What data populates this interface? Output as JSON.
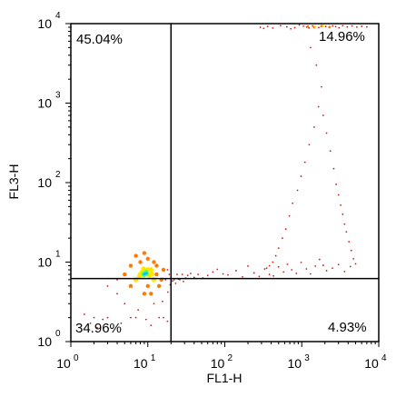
{
  "chart_data": {
    "type": "scatter",
    "x_axis": {
      "label": "FL1-H",
      "scale": "log",
      "range": [
        1,
        10000
      ],
      "ticks": [
        {
          "value": 1,
          "base": "10",
          "exponent": "0"
        },
        {
          "value": 10,
          "base": "10",
          "exponent": "1"
        },
        {
          "value": 100,
          "base": "10",
          "exponent": "2"
        },
        {
          "value": 1000,
          "base": "10",
          "exponent": "3"
        },
        {
          "value": 10000,
          "base": "10",
          "exponent": "4"
        }
      ]
    },
    "y_axis": {
      "label": "FL3-H",
      "scale": "log",
      "range": [
        1,
        10000
      ],
      "ticks": [
        {
          "value": 1,
          "base": "10",
          "exponent": "0"
        },
        {
          "value": 10,
          "base": "10",
          "exponent": "1"
        },
        {
          "value": 100,
          "base": "10",
          "exponent": "2"
        },
        {
          "value": 1000,
          "base": "10",
          "exponent": "3"
        },
        {
          "value": 10000,
          "base": "10",
          "exponent": "4"
        }
      ]
    },
    "quadrant_gates": {
      "x": 20,
      "y": 6.2
    },
    "quadrant_labels": {
      "upper_left": "45.04%",
      "upper_right": "14.96%",
      "lower_left": "34.96%",
      "lower_right": "4.93%"
    },
    "grid": false,
    "legend": "none",
    "density_colors": {
      "sparse": "#d11b1b",
      "medium": "#ff7a00",
      "dense": "#ffe600",
      "peak": "#5aff5a",
      "core": "#00c6ff"
    },
    "series": [
      {
        "role": "main-population",
        "color": "#d11b1b",
        "points": [
          [
            8,
            7
          ],
          [
            9,
            7
          ],
          [
            10,
            8
          ],
          [
            7,
            6
          ],
          [
            11,
            8
          ],
          [
            12,
            6
          ],
          [
            6,
            5
          ],
          [
            13,
            7
          ],
          [
            9,
            4
          ],
          [
            8,
            10
          ],
          [
            14,
            5
          ],
          [
            5,
            7
          ],
          [
            10,
            11
          ],
          [
            11,
            4
          ],
          [
            7,
            12
          ],
          [
            16,
            8
          ],
          [
            15,
            6
          ],
          [
            6,
            9
          ],
          [
            12,
            10
          ],
          [
            13,
            9
          ],
          [
            9,
            13
          ],
          [
            10,
            5
          ],
          [
            4,
            6
          ],
          [
            17,
            6
          ],
          [
            18,
            8
          ],
          [
            3,
            5
          ],
          [
            19,
            7
          ],
          [
            20,
            6
          ],
          [
            22,
            6
          ],
          [
            24,
            7
          ],
          [
            26,
            6
          ],
          [
            28,
            7
          ],
          [
            4,
            4
          ],
          [
            5,
            3
          ],
          [
            6,
            2
          ],
          [
            7,
            2
          ],
          [
            12,
            3
          ],
          [
            14,
            2
          ],
          [
            16,
            2
          ],
          [
            2,
            2
          ],
          [
            3,
            2
          ],
          [
            1.5,
            2.2
          ],
          [
            1.8,
            1.7
          ],
          [
            2.2,
            1.5
          ],
          [
            2.6,
            1.9
          ],
          [
            4.5,
            1.7
          ],
          [
            18,
            1.8
          ],
          [
            11,
            1.6
          ],
          [
            9.5,
            1.9
          ],
          [
            7.5,
            2.5
          ],
          [
            15.5,
            3.2
          ],
          [
            18.2,
            4.2
          ],
          [
            19.5,
            5.2
          ],
          [
            21,
            5.8
          ],
          [
            23,
            5.4
          ],
          [
            25,
            6.1
          ],
          [
            29,
            5.7
          ],
          [
            31,
            6.3
          ],
          [
            33,
            6.8
          ],
          [
            36,
            7.2
          ],
          [
            40,
            6.4
          ],
          [
            45,
            7.0
          ],
          [
            52,
            6.3
          ],
          [
            60,
            6.8
          ],
          [
            70,
            7.5
          ],
          [
            80,
            8.1
          ],
          [
            95,
            7.1
          ],
          [
            110,
            6.9
          ],
          [
            140,
            7.8
          ],
          [
            170,
            6.5
          ],
          [
            200,
            8.9
          ],
          [
            240,
            7.3
          ],
          [
            280,
            6.6
          ],
          [
            330,
            8.2
          ],
          [
            380,
            7.0
          ],
          [
            430,
            6.7
          ],
          [
            500,
            8.7
          ],
          [
            580,
            7.5
          ],
          [
            650,
            9.4
          ],
          [
            740,
            8.0
          ],
          [
            850,
            7.2
          ],
          [
            980,
            9.9
          ],
          [
            1150,
            8.2
          ],
          [
            1300,
            7.1
          ],
          [
            1500,
            8.9
          ],
          [
            1700,
            10.8
          ],
          [
            1900,
            9.1
          ],
          [
            2100,
            7.8
          ],
          [
            2500,
            8.4
          ],
          [
            3000,
            9.3
          ],
          [
            3600,
            7.6
          ],
          [
            4300,
            8.8
          ]
        ]
      },
      {
        "role": "core-density",
        "color": "#ff7a00",
        "points": [
          [
            8,
            7
          ],
          [
            9,
            7
          ],
          [
            10,
            8
          ],
          [
            7,
            6
          ],
          [
            11,
            8
          ],
          [
            12,
            6
          ],
          [
            6,
            5
          ],
          [
            13,
            7
          ],
          [
            9,
            4
          ],
          [
            8,
            10
          ],
          [
            14,
            5
          ],
          [
            5,
            7
          ],
          [
            10,
            11
          ],
          [
            11,
            4
          ],
          [
            7,
            12
          ],
          [
            16,
            8
          ],
          [
            15,
            6
          ],
          [
            6,
            9
          ],
          [
            12,
            10
          ],
          [
            13,
            9
          ],
          [
            9,
            13
          ],
          [
            10,
            5
          ]
        ]
      },
      {
        "role": "peak-density",
        "color": "#ffe600",
        "points": [
          [
            8,
            7
          ],
          [
            9,
            7
          ],
          [
            10,
            8
          ],
          [
            7,
            6
          ],
          [
            11,
            8
          ],
          [
            12,
            6
          ],
          [
            8.5,
            7.5
          ],
          [
            9.5,
            7.2
          ],
          [
            10.5,
            6.8
          ],
          [
            7.8,
            6.6
          ],
          [
            11.2,
            7.1
          ],
          [
            8.8,
            8.2
          ]
        ]
      },
      {
        "role": "hot-center",
        "color": "#5aff5a",
        "points": [
          [
            8.7,
            7.1
          ],
          [
            9.1,
            7.3
          ],
          [
            9.4,
            7.0
          ],
          [
            9.8,
            7.2
          ],
          [
            8.9,
            6.8
          ],
          [
            9.5,
            7.6
          ]
        ]
      },
      {
        "role": "core-center",
        "color": "#00c6ff",
        "points": [
          [
            9.2,
            7.15
          ],
          [
            9.6,
            7.25
          ],
          [
            8.95,
            7.05
          ]
        ]
      },
      {
        "role": "upper-right-events",
        "color": "#d11b1b",
        "points": [
          [
            290,
            9000
          ],
          [
            320,
            8700
          ],
          [
            360,
            9200
          ],
          [
            420,
            8800
          ],
          [
            530,
            9400
          ],
          [
            640,
            9100
          ],
          [
            720,
            8600
          ],
          [
            810,
            8900
          ],
          [
            930,
            9600
          ],
          [
            1050,
            9300
          ],
          [
            1160,
            9050
          ],
          [
            1240,
            8800
          ],
          [
            1380,
            9350
          ],
          [
            1510,
            9100
          ],
          [
            1660,
            8950
          ],
          [
            1840,
            9450
          ],
          [
            2050,
            9200
          ],
          [
            2260,
            9000
          ],
          [
            2520,
            9350
          ],
          [
            2760,
            9150
          ],
          [
            3050,
            8850
          ],
          [
            3400,
            9400
          ],
          [
            3900,
            9100
          ],
          [
            4500,
            9350
          ],
          [
            5200,
            9050
          ],
          [
            6000,
            9250
          ],
          [
            7000,
            9100
          ],
          [
            1300,
            5000
          ],
          [
            1550,
            3000
          ],
          [
            1800,
            1600
          ],
          [
            1650,
            900
          ],
          [
            1450,
            500
          ],
          [
            1250,
            300
          ],
          [
            1100,
            180
          ],
          [
            980,
            120
          ],
          [
            880,
            80
          ],
          [
            760,
            55
          ],
          [
            690,
            38
          ],
          [
            620,
            26
          ],
          [
            560,
            20
          ],
          [
            500,
            15
          ],
          [
            460,
            12
          ],
          [
            420,
            10
          ],
          [
            380,
            9
          ],
          [
            350,
            8.4
          ],
          [
            1900,
            700
          ],
          [
            2100,
            420
          ],
          [
            2350,
            250
          ],
          [
            2600,
            150
          ],
          [
            2800,
            95
          ],
          [
            3000,
            70
          ],
          [
            3200,
            52
          ],
          [
            3400,
            40
          ],
          [
            3600,
            30
          ],
          [
            3800,
            24
          ],
          [
            4100,
            18
          ],
          [
            4400,
            14
          ],
          [
            4700,
            11
          ],
          [
            5000,
            9.5
          ]
        ]
      },
      {
        "role": "upper-right-bright",
        "color": "#ff7a00",
        "points": [
          [
            1200,
            9200
          ],
          [
            1450,
            9000
          ],
          [
            1800,
            9300
          ],
          [
            2300,
            9050
          ]
        ]
      },
      {
        "role": "upper-right-hot",
        "color": "#ffe600",
        "points": [
          [
            1500,
            9150
          ],
          [
            1900,
            9220
          ]
        ]
      }
    ]
  }
}
